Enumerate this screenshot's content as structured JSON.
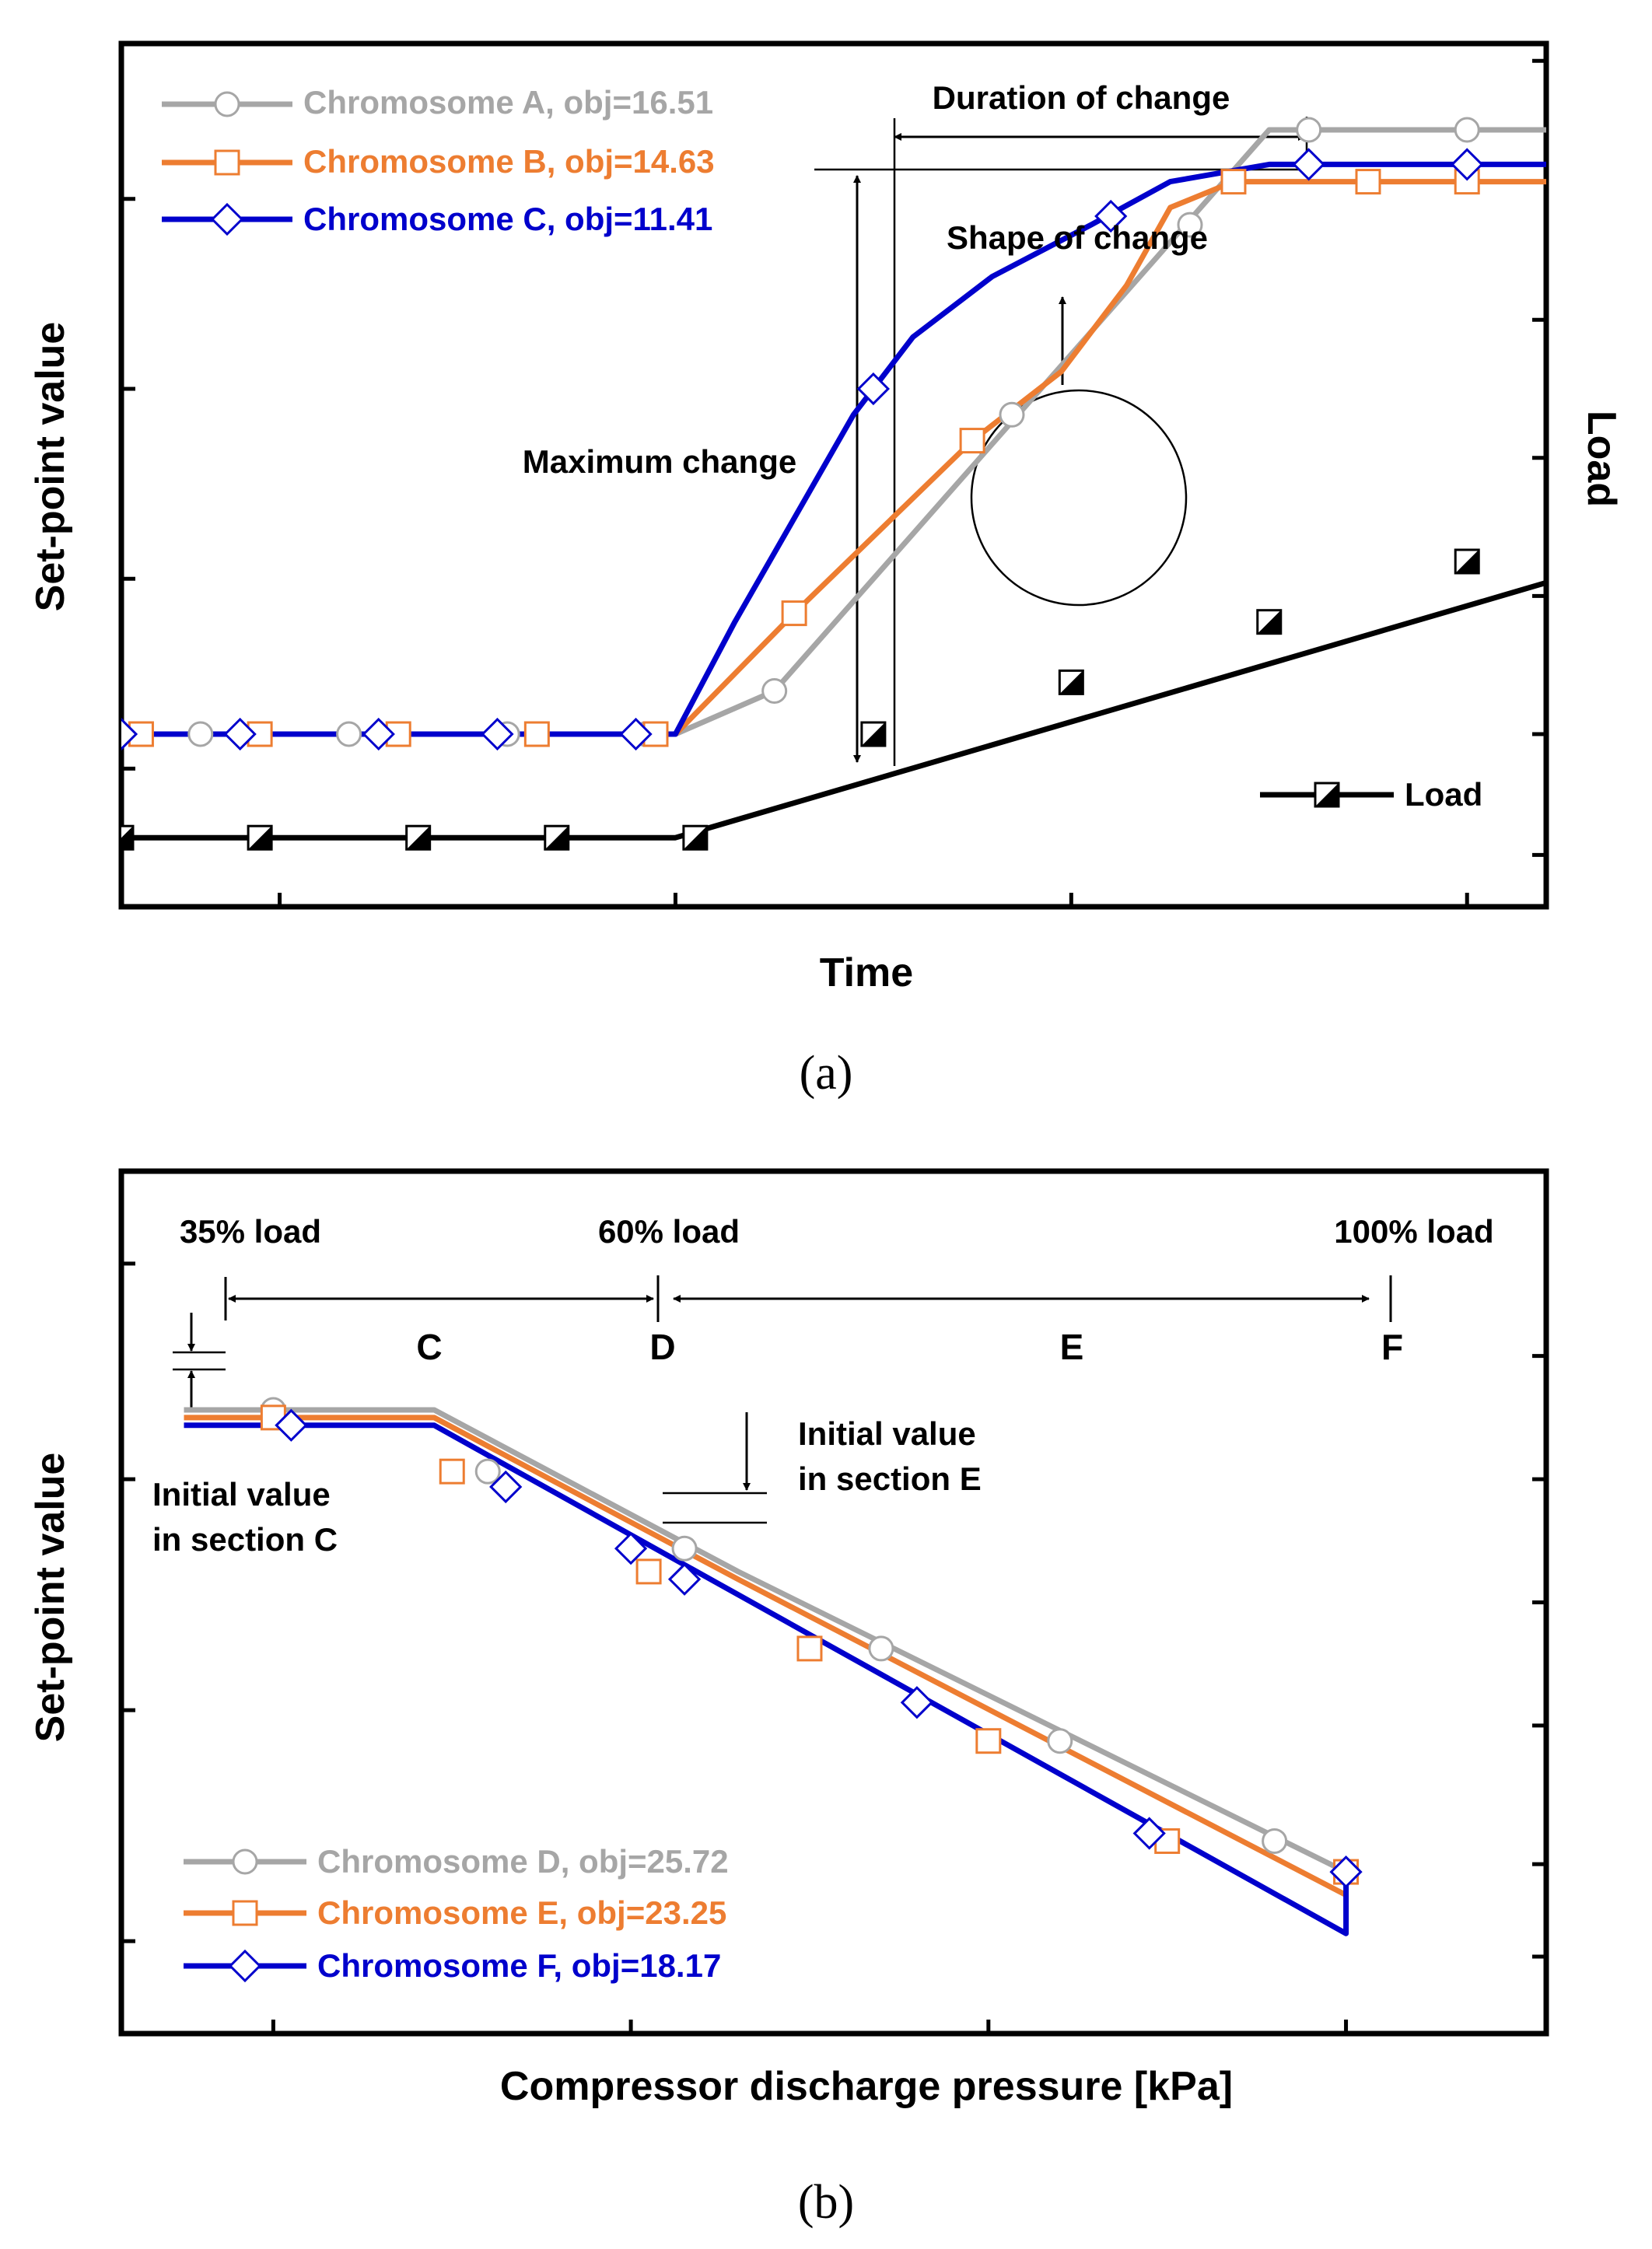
{
  "chart_data": [
    {
      "panel_label": "(a)",
      "type": "line",
      "xlabel": "Time",
      "ylabel": "Set-point value",
      "y2label": "Load",
      "legend": {
        "placement": "top-left",
        "style": "colored-text"
      },
      "grid": false,
      "tick_labels_shown": false,
      "annotations": {
        "duration": "Duration of change",
        "shape": "Shape of change",
        "maximum": "Maximum change"
      },
      "colors": {
        "A": "#a6a6a6",
        "B": "#ed7d31",
        "C": "#0000cc",
        "load": "#000000"
      },
      "series": [
        {
          "name": "Chromosome A, obj=16.51",
          "marker": "circle",
          "color": "#a6a6a6",
          "points": [
            [
              0,
              0.2
            ],
            [
              3,
              0.2
            ],
            [
              3.5,
              0.25
            ],
            [
              6,
              0.9
            ],
            [
              10,
              0.9
            ]
          ],
          "markers": [
            [
              0.6,
              0.2
            ],
            [
              1.35,
              0.2
            ],
            [
              2.15,
              0.2
            ],
            [
              2.85,
              0.2
            ],
            [
              3.5,
              0.25
            ],
            [
              4.7,
              0.57
            ],
            [
              5.6,
              0.79
            ],
            [
              6.2,
              0.9
            ],
            [
              7,
              0.9
            ]
          ]
        },
        {
          "name": "Chromosome B, obj=14.63",
          "marker": "square",
          "color": "#ed7d31",
          "points": [
            [
              0,
              0.2
            ],
            [
              3,
              0.2
            ],
            [
              3.6,
              0.34
            ],
            [
              4.5,
              0.54
            ],
            [
              4.95,
              0.62
            ],
            [
              5.28,
              0.72
            ],
            [
              5.5,
              0.81
            ],
            [
              5.82,
              0.84
            ],
            [
              10,
              0.84
            ]
          ],
          "markers": [
            [
              0.3,
              0.2
            ],
            [
              0.9,
              0.2
            ],
            [
              1.6,
              0.2
            ],
            [
              2.3,
              0.2
            ],
            [
              2.9,
              0.2
            ],
            [
              3.6,
              0.34
            ],
            [
              4.5,
              0.54
            ],
            [
              5.82,
              0.84
            ],
            [
              6.5,
              0.84
            ],
            [
              7,
              0.84
            ]
          ]
        },
        {
          "name": "Chromosome C, obj=11.41",
          "marker": "diamond",
          "color": "#0000cc",
          "points": [
            [
              0,
              0.2
            ],
            [
              3,
              0.2
            ],
            [
              3.3,
              0.33
            ],
            [
              3.6,
              0.45
            ],
            [
              3.9,
              0.57
            ],
            [
              4.2,
              0.66
            ],
            [
              4.6,
              0.73
            ],
            [
              5.1,
              0.79
            ],
            [
              5.5,
              0.84
            ],
            [
              6,
              0.86
            ],
            [
              10,
              0.86
            ]
          ],
          "markers": [
            [
              0.2,
              0.2
            ],
            [
              0.8,
              0.2
            ],
            [
              1.5,
              0.2
            ],
            [
              2.1,
              0.2
            ],
            [
              2.8,
              0.2
            ],
            [
              4.0,
              0.6
            ],
            [
              5.2,
              0.8
            ],
            [
              6.2,
              0.86
            ],
            [
              7,
              0.86
            ]
          ]
        },
        {
          "name": "Load",
          "marker": "half-filled-square",
          "color": "#000000",
          "axis": "right",
          "points": [
            [
              0,
              0.08
            ],
            [
              3,
              0.08
            ],
            [
              10,
              0.55
            ]
          ],
          "markers": [
            [
              0.2,
              0.08
            ],
            [
              0.9,
              0.08
            ],
            [
              1.7,
              0.08
            ],
            [
              2.4,
              0.08
            ],
            [
              3.1,
              0.08
            ],
            [
              4.0,
              0.2
            ],
            [
              5.0,
              0.26
            ],
            [
              6.0,
              0.33
            ],
            [
              7,
              0.4
            ]
          ]
        }
      ]
    },
    {
      "panel_label": "(b)",
      "type": "line",
      "xlabel": "Compressor discharge pressure [kPa]",
      "ylabel": "Set-point value",
      "legend": {
        "placement": "bottom-left",
        "style": "colored-text"
      },
      "grid": false,
      "tick_labels_shown": false,
      "annotations": {
        "load_35": "35% load",
        "load_60": "60% load",
        "load_100": "100% load",
        "section_c": "C",
        "section_d": "D",
        "section_e": "E",
        "section_f": "F",
        "initial_c_line1": "Initial value",
        "initial_c_line2": "in section C",
        "initial_e_line1": "Initial value",
        "initial_e_line2": "in section E"
      },
      "colors": {
        "D": "#a6a6a6",
        "E": "#ed7d31",
        "F": "#0000cc"
      },
      "series": [
        {
          "name": "Chromosome D, obj=25.72",
          "marker": "circle",
          "color": "#a6a6a6",
          "points": [
            [
              0.5,
              0.81
            ],
            [
              1.9,
              0.81
            ],
            [
              3.6,
              0.6
            ],
            [
              7.0,
              0.21
            ]
          ],
          "markers": [
            [
              1.0,
              0.81
            ],
            [
              2.2,
              0.73
            ],
            [
              3.3,
              0.63
            ],
            [
              4.4,
              0.5
            ],
            [
              5.4,
              0.38
            ],
            [
              6.6,
              0.25
            ],
            [
              7.0,
              0.21
            ]
          ]
        },
        {
          "name": "Chromosome E, obj=23.25",
          "marker": "square",
          "color": "#ed7d31",
          "points": [
            [
              0.5,
              0.8
            ],
            [
              1.9,
              0.8
            ],
            [
              3.6,
              0.59
            ],
            [
              7.0,
              0.18
            ]
          ],
          "markers": [
            [
              1.0,
              0.8
            ],
            [
              2.0,
              0.73
            ],
            [
              3.1,
              0.6
            ],
            [
              4.0,
              0.5
            ],
            [
              5.0,
              0.38
            ],
            [
              6.0,
              0.25
            ],
            [
              7.0,
              0.21
            ]
          ]
        },
        {
          "name": "Chromosome F, obj=18.17",
          "marker": "diamond",
          "color": "#0000cc",
          "points": [
            [
              0.5,
              0.79
            ],
            [
              1.9,
              0.79
            ],
            [
              3.6,
              0.57
            ],
            [
              7.0,
              0.13
            ],
            [
              7.0,
              0.21
            ]
          ],
          "markers": [
            [
              1.1,
              0.79
            ],
            [
              2.3,
              0.71
            ],
            [
              3.0,
              0.63
            ],
            [
              3.3,
              0.59
            ],
            [
              4.6,
              0.43
            ],
            [
              5.9,
              0.26
            ],
            [
              7.0,
              0.21
            ]
          ]
        }
      ]
    }
  ]
}
